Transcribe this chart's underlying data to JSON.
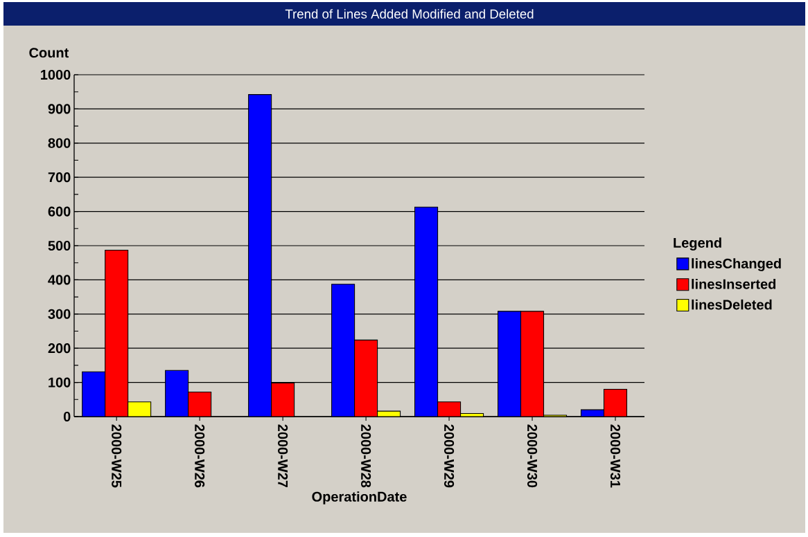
{
  "chart_data": {
    "type": "bar",
    "title": "Trend of Lines Added Modified and Deleted",
    "xlabel": "OperationDate",
    "ylabel": "Count",
    "legend_title": "Legend",
    "categories": [
      "2000-W25",
      "2000-W26",
      "2000-W27",
      "2000-W28",
      "2000-W29",
      "2000-W30",
      "2000-W31"
    ],
    "series": [
      {
        "name": "linesChanged",
        "color": "#0000ff",
        "values": [
          131,
          135,
          942,
          387,
          613,
          308,
          20
        ]
      },
      {
        "name": "linesInserted",
        "color": "#ff0000",
        "values": [
          487,
          72,
          98,
          224,
          43,
          308,
          80
        ]
      },
      {
        "name": "linesDeleted",
        "color": "#ffff00",
        "values": [
          43,
          null,
          null,
          16,
          9,
          4,
          null
        ]
      }
    ],
    "ylim": [
      0,
      1000
    ],
    "yticks": [
      0,
      100,
      200,
      300,
      400,
      500,
      600,
      700,
      800,
      900,
      1000
    ],
    "grid": "y",
    "legend": "right"
  }
}
